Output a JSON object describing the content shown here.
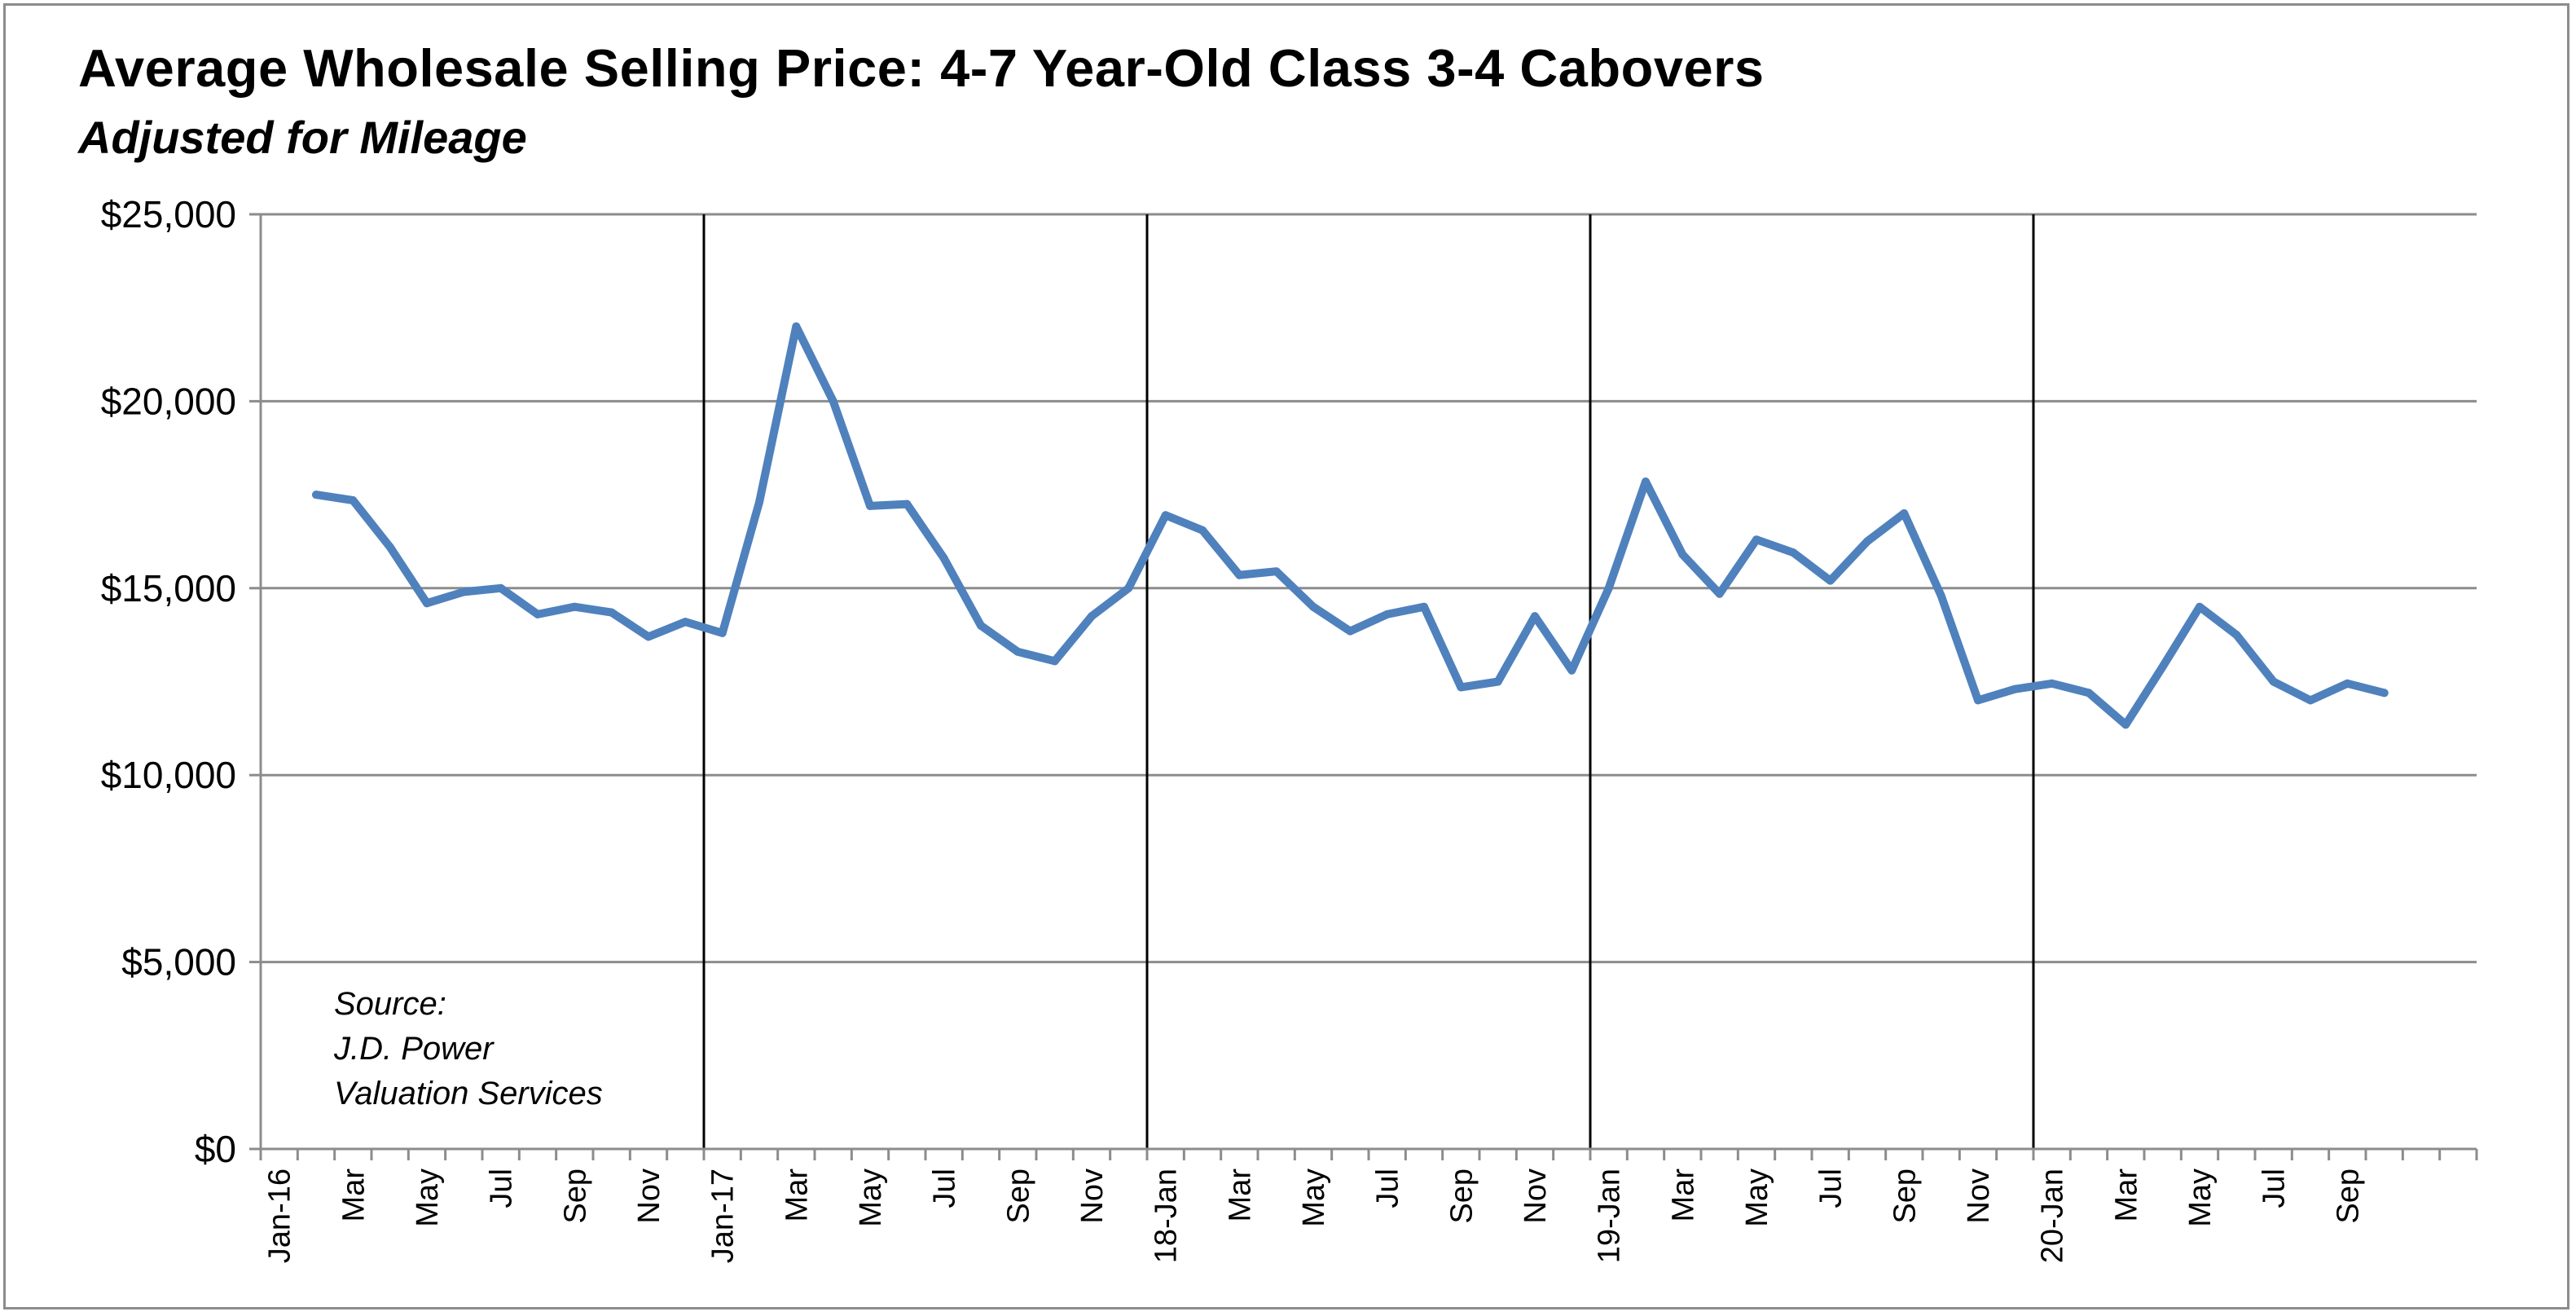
{
  "chart_data": {
    "type": "line",
    "title": "Average Wholesale Selling Price: 4-7 Year-Old Class 3-4 Cabovers",
    "subtitle": "Adjusted for Mileage",
    "xlabel": "",
    "ylabel": "",
    "ylim": [
      0,
      25000
    ],
    "yticks": [
      "$0",
      "$5,000",
      "$10,000",
      "$15,000",
      "$20,000",
      "$25,000"
    ],
    "ytick_values": [
      0,
      5000,
      10000,
      15000,
      20000,
      25000
    ],
    "grid": "horizontal",
    "year_dividers": [
      "Jan-17",
      "18-Jan",
      "19-Jan",
      "20-Jan"
    ],
    "x_labels": [
      "Jan-16",
      "Mar",
      "May",
      "Jul",
      "Sep",
      "Nov",
      "Jan-17",
      "Mar",
      "May",
      "Jul",
      "Sep",
      "Nov",
      "18-Jan",
      "Mar",
      "May",
      "Jul",
      "Sep",
      "Nov",
      "19-Jan",
      "Mar",
      "May",
      "Jul",
      "Sep",
      "Nov",
      "20-Jan",
      "Mar",
      "May",
      "Jul",
      "Sep"
    ],
    "x": [
      "Feb-16",
      "Mar-16",
      "Apr-16",
      "May-16",
      "Jun-16",
      "Jul-16",
      "Aug-16",
      "Sep-16",
      "Oct-16",
      "Nov-16",
      "Dec-16",
      "Jan-17",
      "Feb-17",
      "Mar-17",
      "Apr-17",
      "May-17",
      "Jun-17",
      "Jul-17",
      "Aug-17",
      "Sep-17",
      "Oct-17",
      "Nov-17",
      "Dec-17",
      "Jan-18",
      "Feb-18",
      "Mar-18",
      "Apr-18",
      "May-18",
      "Jun-18",
      "Jul-18",
      "Aug-18",
      "Sep-18",
      "Oct-18",
      "Nov-18",
      "Dec-18",
      "Jan-19",
      "Feb-19",
      "Mar-19",
      "Apr-19",
      "May-19",
      "Jun-19",
      "Jul-19",
      "Aug-19",
      "Sep-19",
      "Oct-19",
      "Nov-19",
      "Dec-19",
      "Jan-20",
      "Feb-20",
      "Mar-20",
      "Apr-20",
      "May-20",
      "Jun-20",
      "Jul-20",
      "Aug-20",
      "Sep-20",
      "Oct-20"
    ],
    "series": [
      {
        "name": "",
        "color": "#4f81bd",
        "values": [
          17500,
          17350,
          16100,
          14600,
          14900,
          15000,
          14300,
          14500,
          14350,
          13700,
          14100,
          13800,
          17300,
          22000,
          20000,
          17200,
          17250,
          15800,
          14000,
          13300,
          13050,
          14250,
          15000,
          16950,
          16550,
          15350,
          15450,
          14500,
          13850,
          14300,
          14500,
          12350,
          12500,
          14250,
          12800,
          15000,
          17850,
          15900,
          14850,
          16300,
          15950,
          15200,
          16250,
          17000,
          14800,
          12000,
          12300,
          12450,
          12200,
          11350,
          12900,
          14500,
          13750,
          12500,
          12000,
          12450,
          12200
        ]
      }
    ],
    "source_note": [
      "Source:",
      "J.D. Power",
      "Valuation Services"
    ]
  }
}
